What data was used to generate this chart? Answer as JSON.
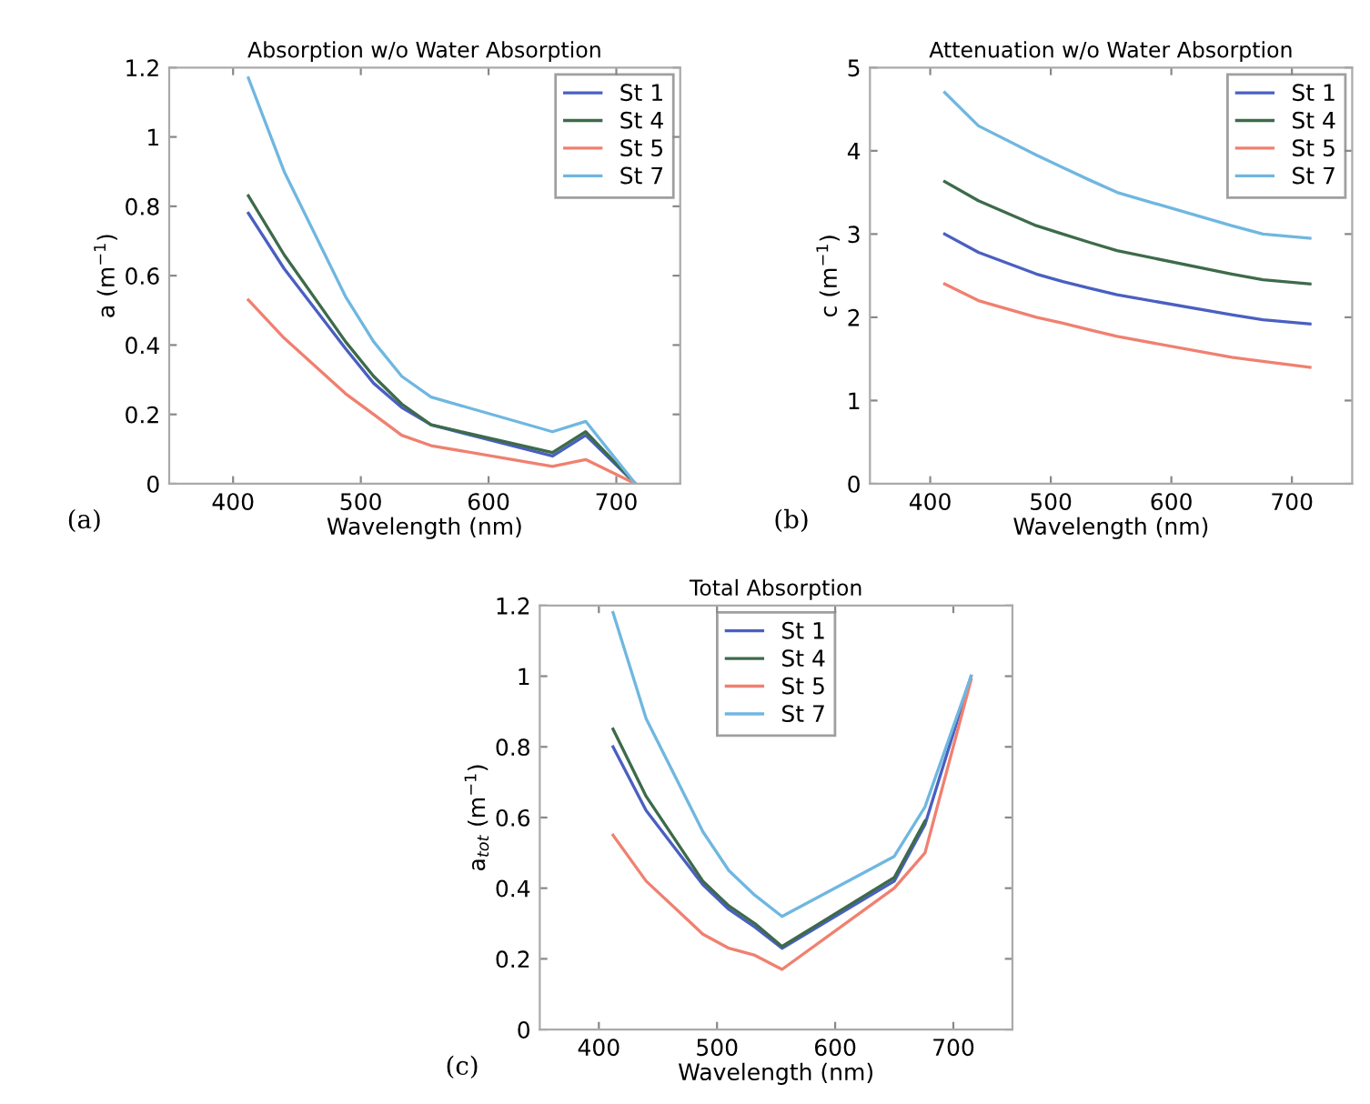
{
  "chart_data": [
    {
      "type": "line",
      "title": "Absorption w/o Water Absorption",
      "xlabel": "Wavelength (nm)",
      "ylabel": "a (m$^{−1}$)",
      "annotations": [
        "(a)"
      ],
      "x": [
        412,
        440,
        488,
        510,
        532,
        555,
        650,
        676,
        715
      ],
      "xlim": [
        350,
        750
      ],
      "xticks": [
        400,
        500,
        600,
        700
      ],
      "ylim": [
        0,
        1.2
      ],
      "yticks": [
        0,
        0.2,
        0.4,
        0.6,
        0.8,
        1,
        1.2
      ],
      "grid": false,
      "legend": "top right",
      "series": [
        {
          "name": "St 1",
          "color": "#4a5fc1",
          "values": [
            0.78,
            0.62,
            0.39,
            0.29,
            0.22,
            0.17,
            0.08,
            0.14,
            0.0
          ]
        },
        {
          "name": "St 4",
          "color": "#3d6b4a",
          "values": [
            0.83,
            0.66,
            0.41,
            0.31,
            0.23,
            0.17,
            0.09,
            0.15,
            0.0
          ]
        },
        {
          "name": "St 5",
          "color": "#f08070",
          "values": [
            0.53,
            0.42,
            0.26,
            0.2,
            0.14,
            0.11,
            0.05,
            0.07,
            0.0
          ]
        },
        {
          "name": "St 7",
          "color": "#6fb7e0",
          "values": [
            1.17,
            0.9,
            0.54,
            0.41,
            0.31,
            0.25,
            0.15,
            0.18,
            0.0
          ]
        }
      ]
    },
    {
      "type": "line",
      "title": "Attenuation w/o Water Absorption",
      "xlabel": "Wavelength (nm)",
      "ylabel": "c (m$^{−1}$)",
      "annotations": [
        "(b)"
      ],
      "x": [
        412,
        440,
        488,
        510,
        532,
        555,
        650,
        676,
        715
      ],
      "xlim": [
        350,
        750
      ],
      "xticks": [
        400,
        500,
        600,
        700
      ],
      "ylim": [
        0,
        5
      ],
      "yticks": [
        0,
        1,
        2,
        3,
        4,
        5
      ],
      "grid": false,
      "legend": "top right",
      "series": [
        {
          "name": "St 1",
          "color": "#4a5fc1",
          "values": [
            3.0,
            2.78,
            2.52,
            2.43,
            2.35,
            2.27,
            2.03,
            1.97,
            1.92
          ]
        },
        {
          "name": "St 4",
          "color": "#3d6b4a",
          "values": [
            3.63,
            3.4,
            3.1,
            3.0,
            2.9,
            2.8,
            2.52,
            2.45,
            2.4
          ]
        },
        {
          "name": "St 5",
          "color": "#f08070",
          "values": [
            2.4,
            2.2,
            2.0,
            1.93,
            1.85,
            1.77,
            1.52,
            1.47,
            1.4
          ]
        },
        {
          "name": "St 7",
          "color": "#6fb7e0",
          "values": [
            4.7,
            4.3,
            3.95,
            3.8,
            3.65,
            3.5,
            3.1,
            3.0,
            2.95
          ]
        }
      ]
    },
    {
      "type": "line",
      "title": "Total Absorption",
      "xlabel": "Wavelength (nm)",
      "ylabel": "a$_{tot}$ (m$^{−1}$)",
      "annotations": [
        "(c)"
      ],
      "x": [
        412,
        440,
        488,
        510,
        532,
        555,
        650,
        676,
        715
      ],
      "xlim": [
        350,
        750
      ],
      "xticks": [
        400,
        500,
        600,
        700
      ],
      "ylim": [
        0,
        1.2
      ],
      "yticks": [
        0,
        0.2,
        0.4,
        0.6,
        0.8,
        1,
        1.2
      ],
      "grid": false,
      "legend": "top",
      "series": [
        {
          "name": "St 1",
          "color": "#4a5fc1",
          "values": [
            0.8,
            0.62,
            0.41,
            0.34,
            0.29,
            0.23,
            0.42,
            0.58,
            1.0
          ]
        },
        {
          "name": "St 4",
          "color": "#3d6b4a",
          "values": [
            0.85,
            0.66,
            0.42,
            0.35,
            0.3,
            0.235,
            0.43,
            0.59,
            null
          ]
        },
        {
          "name": "St 5",
          "color": "#f08070",
          "values": [
            0.55,
            0.42,
            0.27,
            0.23,
            0.21,
            0.17,
            0.4,
            0.5,
            0.99
          ]
        },
        {
          "name": "St 7",
          "color": "#6fb7e0",
          "values": [
            1.18,
            0.88,
            0.56,
            0.45,
            0.38,
            0.32,
            0.49,
            0.63,
            1.0
          ]
        }
      ]
    }
  ]
}
